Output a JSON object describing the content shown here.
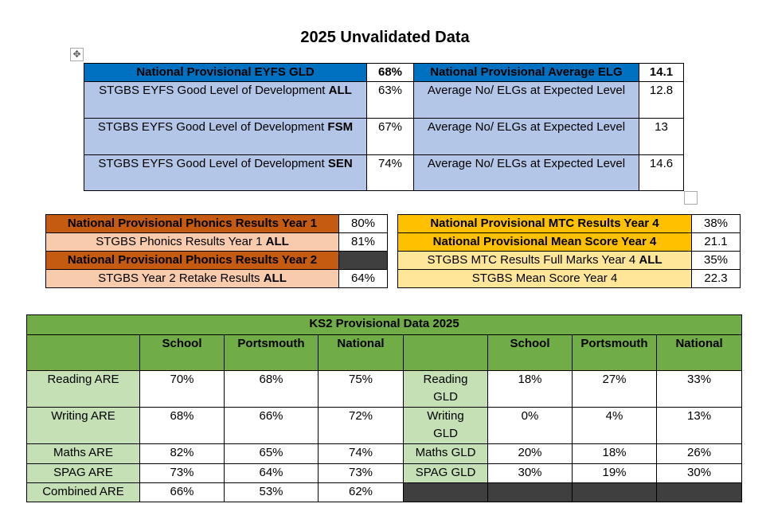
{
  "title": "2025 Unvalidated Data",
  "eyfs": {
    "header": {
      "label": "National Provisional EYFS GLD",
      "value": "68%",
      "elg_label": "National Provisional Average ELG",
      "elg_value": "14.1"
    },
    "rows": [
      {
        "label": "STGBS EYFS Good Level of Development ",
        "group": "ALL",
        "value": "63%",
        "elg_label": "Average No/ ELGs at Expected Level",
        "elg_value": "12.8"
      },
      {
        "label": "STGBS EYFS Good Level of Development ",
        "group": "FSM",
        "value": "67%",
        "elg_label": "Average No/ ELGs at Expected Level",
        "elg_value": "13"
      },
      {
        "label": "STGBS EYFS Good Level of Development ",
        "group": "SEN",
        "value": "74%",
        "elg_label": "Average No/ ELGs at Expected Level",
        "elg_value": "14.6"
      }
    ]
  },
  "phonics": {
    "r1": {
      "label": "National Provisional Phonics Results Year 1",
      "value": "80%"
    },
    "r2": {
      "label": "STGBS Phonics Results Year 1 ",
      "group": "ALL",
      "value": "81%"
    },
    "r3": {
      "label": "National Provisional Phonics Results Year 2"
    },
    "r4": {
      "label": "STGBS Year 2 Retake Results ",
      "group": "ALL",
      "value": "64%"
    }
  },
  "mtc": {
    "r1": {
      "label": "National Provisional MTC Results Year 4",
      "value": "38%"
    },
    "r2": {
      "label": "National Provisional Mean Score Year 4",
      "value": "21.1"
    },
    "r3": {
      "label": "STGBS MTC Results Full Marks Year 4 ",
      "group": "ALL",
      "value": "35%"
    },
    "r4": {
      "label": "STGBS Mean Score Year 4",
      "value": "22.3"
    }
  },
  "ks2": {
    "title": "KS2 Provisional Data 2025",
    "headers": [
      "School",
      "Portsmouth",
      "National",
      "School",
      "Portsmouth",
      "National"
    ],
    "rows": [
      {
        "are": "Reading ARE",
        "v": [
          "70%",
          "68%",
          "75%"
        ],
        "gld": "Reading GLD",
        "g": [
          "18%",
          "27%",
          "33%"
        ]
      },
      {
        "are": "Writing ARE",
        "v": [
          "68%",
          "66%",
          "72%"
        ],
        "gld": "Writing GLD",
        "g": [
          "0%",
          "4%",
          "13%"
        ]
      },
      {
        "are": "Maths ARE",
        "v": [
          "82%",
          "65%",
          "74%"
        ],
        "gld": "Maths GLD",
        "g": [
          "20%",
          "18%",
          "26%"
        ]
      },
      {
        "are": "SPAG ARE",
        "v": [
          "73%",
          "64%",
          "73%"
        ],
        "gld": "SPAG GLD",
        "g": [
          "30%",
          "19%",
          "30%"
        ]
      },
      {
        "are": "Combined ARE",
        "v": [
          "66%",
          "53%",
          "62%"
        ]
      }
    ]
  }
}
